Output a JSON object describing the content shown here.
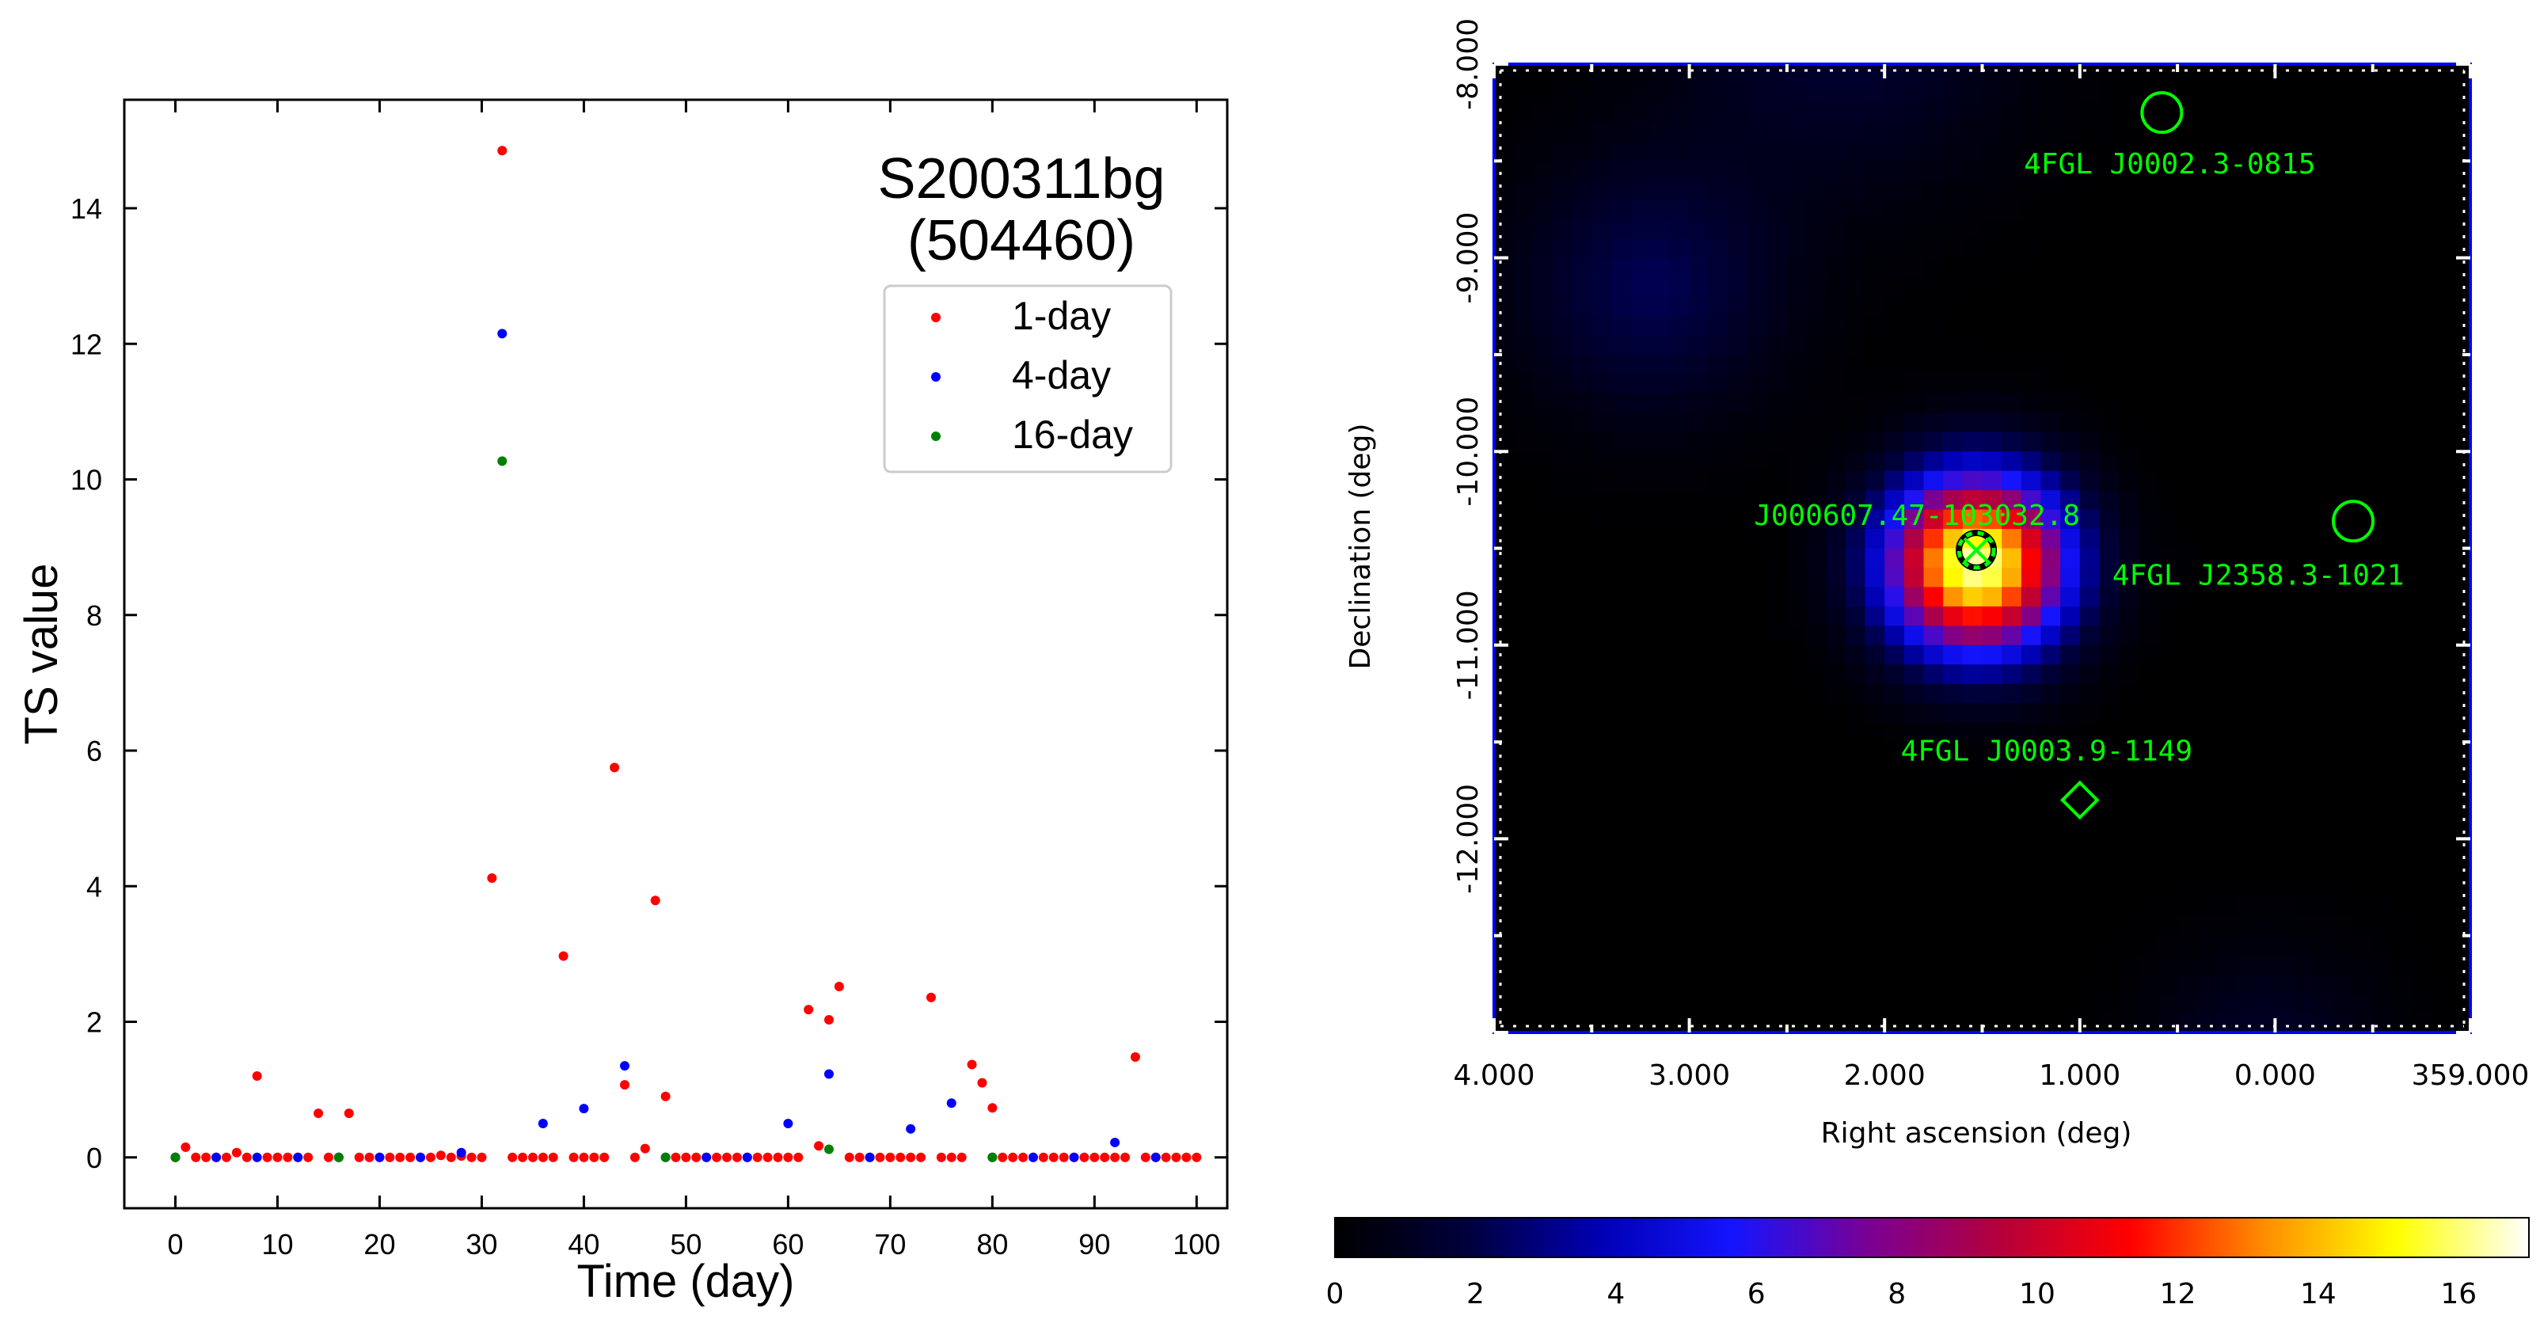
{
  "chart_data": [
    {
      "type": "scatter",
      "title": "S200311bg",
      "subtitle": "(504460)",
      "xlabel": "Time (day)",
      "ylabel": "TS value",
      "xlim": [
        -5,
        103
      ],
      "ylim": [
        -0.75,
        15.6
      ],
      "xticks": [
        0,
        10,
        20,
        30,
        40,
        50,
        60,
        70,
        80,
        90,
        100
      ],
      "yticks": [
        0,
        2,
        4,
        6,
        8,
        10,
        12,
        14
      ],
      "legend_position": "top-right",
      "series": [
        {
          "name": "1-day",
          "color": "#ff0000",
          "points": [
            [
              0,
              0
            ],
            [
              1,
              0.15
            ],
            [
              2,
              0
            ],
            [
              3,
              0
            ],
            [
              4,
              0
            ],
            [
              5,
              0
            ],
            [
              6,
              0.07
            ],
            [
              7,
              0
            ],
            [
              8,
              1.2
            ],
            [
              9,
              0
            ],
            [
              10,
              0
            ],
            [
              11,
              0
            ],
            [
              12,
              0
            ],
            [
              13,
              0
            ],
            [
              14,
              0.65
            ],
            [
              15,
              0
            ],
            [
              16,
              0
            ],
            [
              17,
              0.65
            ],
            [
              18,
              0
            ],
            [
              19,
              0
            ],
            [
              20,
              0
            ],
            [
              21,
              0
            ],
            [
              22,
              0
            ],
            [
              23,
              0
            ],
            [
              24,
              0
            ],
            [
              25,
              0
            ],
            [
              26,
              0.03
            ],
            [
              27,
              0
            ],
            [
              28,
              0.02
            ],
            [
              29,
              0
            ],
            [
              30,
              0
            ],
            [
              31,
              4.12
            ],
            [
              32,
              14.85
            ],
            [
              33,
              0
            ],
            [
              34,
              0
            ],
            [
              35,
              0
            ],
            [
              36,
              0
            ],
            [
              37,
              0
            ],
            [
              38,
              2.97
            ],
            [
              39,
              0
            ],
            [
              40,
              0
            ],
            [
              41,
              0
            ],
            [
              42,
              0
            ],
            [
              43,
              5.75
            ],
            [
              44,
              1.07
            ],
            [
              45,
              0
            ],
            [
              46,
              0.13
            ],
            [
              47,
              3.79
            ],
            [
              48,
              0.9
            ],
            [
              49,
              0
            ],
            [
              50,
              0
            ],
            [
              51,
              0
            ],
            [
              52,
              0
            ],
            [
              53,
              0
            ],
            [
              54,
              0
            ],
            [
              55,
              0
            ],
            [
              56,
              0
            ],
            [
              57,
              0
            ],
            [
              58,
              0
            ],
            [
              59,
              0
            ],
            [
              60,
              0
            ],
            [
              61,
              0
            ],
            [
              62,
              2.18
            ],
            [
              63,
              0.17
            ],
            [
              64,
              2.03
            ],
            [
              65,
              2.52
            ],
            [
              66,
              0
            ],
            [
              67,
              0
            ],
            [
              68,
              0
            ],
            [
              69,
              0
            ],
            [
              70,
              0
            ],
            [
              71,
              0
            ],
            [
              72,
              0
            ],
            [
              73,
              0
            ],
            [
              74,
              2.36
            ],
            [
              75,
              0
            ],
            [
              76,
              0
            ],
            [
              77,
              0
            ],
            [
              78,
              1.37
            ],
            [
              79,
              1.1
            ],
            [
              80,
              0.73
            ],
            [
              81,
              0
            ],
            [
              82,
              0
            ],
            [
              83,
              0
            ],
            [
              84,
              0
            ],
            [
              85,
              0
            ],
            [
              86,
              0
            ],
            [
              87,
              0
            ],
            [
              88,
              0
            ],
            [
              89,
              0
            ],
            [
              90,
              0
            ],
            [
              91,
              0
            ],
            [
              92,
              0
            ],
            [
              93,
              0
            ],
            [
              94,
              1.48
            ],
            [
              95,
              0
            ],
            [
              96,
              0
            ],
            [
              97,
              0
            ],
            [
              98,
              0
            ],
            [
              99,
              0
            ],
            [
              100,
              0
            ]
          ]
        },
        {
          "name": "4-day",
          "color": "#0000ff",
          "points": [
            [
              0,
              0
            ],
            [
              4,
              0
            ],
            [
              8,
              0
            ],
            [
              12,
              0
            ],
            [
              16,
              0
            ],
            [
              20,
              0
            ],
            [
              24,
              0
            ],
            [
              28,
              0.07
            ],
            [
              32,
              12.15
            ],
            [
              36,
              0.5
            ],
            [
              40,
              0.72
            ],
            [
              44,
              1.35
            ],
            [
              48,
              0
            ],
            [
              52,
              0
            ],
            [
              56,
              0
            ],
            [
              60,
              0.5
            ],
            [
              64,
              1.23
            ],
            [
              68,
              0
            ],
            [
              72,
              0.42
            ],
            [
              76,
              0.8
            ],
            [
              80,
              0
            ],
            [
              84,
              0
            ],
            [
              88,
              0
            ],
            [
              92,
              0.22
            ],
            [
              96,
              0
            ]
          ]
        },
        {
          "name": "16-day",
          "color": "#008000",
          "points": [
            [
              0,
              0
            ],
            [
              16,
              0
            ],
            [
              32,
              10.27
            ],
            [
              48,
              0
            ],
            [
              64,
              0.12
            ],
            [
              80,
              0
            ]
          ]
        }
      ]
    },
    {
      "type": "heatmap",
      "xlabel": "Right ascension (deg)",
      "ylabel": "Declination (deg)",
      "xlim": [
        4.0,
        -1.0
      ],
      "ylim": [
        -13.0,
        -8.0
      ],
      "xtick_labels": [
        "4.000",
        "3.000",
        "2.000",
        "1.000",
        "0.000",
        "359.000"
      ],
      "xtick_values": [
        4.0,
        3.0,
        2.0,
        1.0,
        0.0,
        -1.0
      ],
      "ytick_labels": [
        "-8.000",
        "-9.000",
        "-10.000",
        "-11.000",
        "-12.000"
      ],
      "ytick_values": [
        -8.0,
        -9.0,
        -10.0,
        -11.0,
        -12.0
      ],
      "colorbar": {
        "min": 0,
        "max": 17,
        "ticks": [
          "0",
          "2",
          "4",
          "6",
          "8",
          "10",
          "12",
          "14",
          "16"
        ],
        "tick_values": [
          0,
          2,
          4,
          6,
          8,
          10,
          12,
          14,
          16
        ],
        "stops": [
          "#000000",
          "#00003c",
          "#0000b4",
          "#1414ff",
          "#780096",
          "#b4003c",
          "#ff0000",
          "#ff8c00",
          "#ffff00",
          "#ffffff"
        ]
      },
      "blobs": [
        {
          "ra": 1.53,
          "dec": -10.58,
          "sigma_deg": 0.32,
          "peak": 16.5
        },
        {
          "ra": 3.2,
          "dec": -9.15,
          "sigma_deg": 0.45,
          "peak": 2.2
        },
        {
          "ra": 2.2,
          "dec": -7.75,
          "sigma_deg": 0.6,
          "peak": 1.6
        },
        {
          "ra": 0.05,
          "dec": -13.2,
          "sigma_deg": 0.4,
          "peak": 1.4
        }
      ],
      "sources": [
        {
          "label": "4FGL J0002.3-0815",
          "ra": 0.58,
          "dec": -8.25,
          "marker": "circle",
          "color": "#00ff00"
        },
        {
          "label": "4FGL J2358.3-1021",
          "ra": -0.4,
          "dec": -10.36,
          "marker": "circle",
          "color": "#00ff00"
        },
        {
          "label": "J000607.47-103032.8",
          "ra": 1.53,
          "dec": -10.51,
          "marker": "dashed-circle",
          "color": "#00ff00"
        },
        {
          "label": "4FGL J0003.9-1149",
          "ra": 1.0,
          "dec": -11.8,
          "marker": "diamond",
          "color": "#00ff00"
        }
      ]
    }
  ]
}
